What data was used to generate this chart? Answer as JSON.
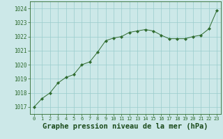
{
  "x": [
    0,
    1,
    2,
    3,
    4,
    5,
    6,
    7,
    8,
    9,
    10,
    11,
    12,
    13,
    14,
    15,
    16,
    17,
    18,
    19,
    20,
    21,
    22,
    23
  ],
  "y": [
    1017.0,
    1017.6,
    1018.0,
    1018.7,
    1019.1,
    1019.3,
    1020.0,
    1020.2,
    1020.9,
    1021.7,
    1021.9,
    1022.0,
    1022.3,
    1022.4,
    1022.5,
    1022.4,
    1022.1,
    1021.85,
    1021.85,
    1021.85,
    1022.0,
    1022.1,
    1022.55,
    1023.85
  ],
  "line_color": "#2d6a2d",
  "marker": "D",
  "marker_size": 2.2,
  "bg_color": "#cce8e8",
  "grid_color": "#99cccc",
  "xlabel": "Graphe pression niveau de la mer (hPa)",
  "xlabel_fontsize": 7.5,
  "xlabel_color": "#1a4a1a",
  "ytick_labels": [
    1017,
    1018,
    1019,
    1020,
    1021,
    1022,
    1023,
    1024
  ],
  "xtick_labels": [
    0,
    1,
    2,
    3,
    4,
    5,
    6,
    7,
    8,
    9,
    10,
    11,
    12,
    13,
    14,
    15,
    16,
    17,
    18,
    19,
    20,
    21,
    22,
    23
  ],
  "ylim": [
    1016.5,
    1024.5
  ],
  "xlim": [
    -0.5,
    23.5
  ]
}
